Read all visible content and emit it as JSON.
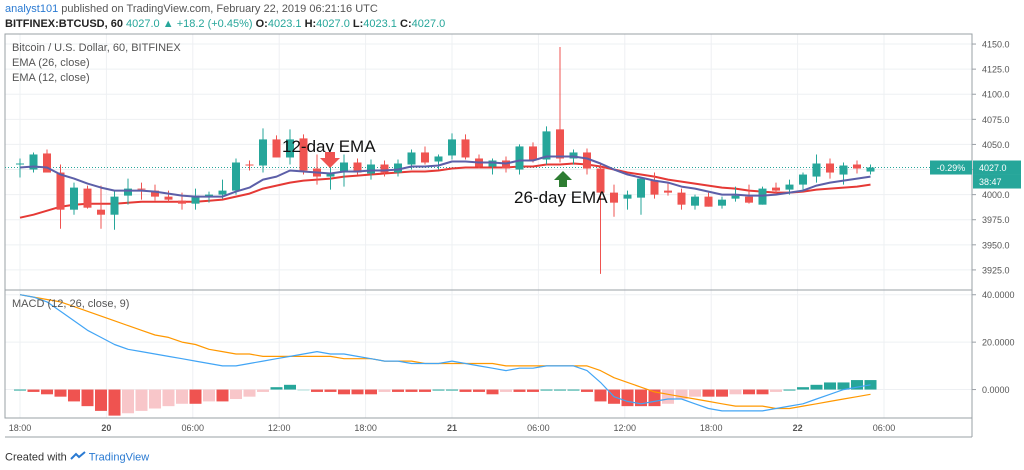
{
  "header": {
    "author": "analyst101",
    "published": "published on TradingView.com, February 22, 2019 06:21:16 UTC",
    "symbol": "BITFINEX:BTCUSD, 60",
    "change_arrow": "▲",
    "change": "+18.2 (+0.45%)",
    "o_label": "O:",
    "o_value": "4023.1",
    "h_label": "H:",
    "h_value": "4027.0",
    "l_label": "L:",
    "l_value": "4023.1",
    "c_label": "C:",
    "c_value": "4027.0"
  },
  "legend": {
    "title": "Bitcoin / U.S. Dollar, 60, BITFINEX",
    "ema26": "EMA (26, close)",
    "ema12": "EMA (12, close)",
    "macd": "MACD (12, 26, close, 9)"
  },
  "annotations": {
    "ema12_label": "12-day EMA",
    "ema26_label": "26-day EMA"
  },
  "price_tags": {
    "change_pct": "-0.29%",
    "last_price": "4027.0",
    "countdown": "38:47"
  },
  "footer": {
    "created_with": "Created with",
    "brand": "TradingView"
  },
  "colors": {
    "up": "#26a69a",
    "down": "#ef5350",
    "ema26": "#e53935",
    "ema12": "#5c5fa8",
    "macd_line": "#42a5f5",
    "signal_line": "#ff9800",
    "hist_down_strong": "#ef5350",
    "hist_down_weak": "#f8c6c9",
    "hist_up_strong": "#26a69a",
    "hist_up_weak": "#b2dfdb"
  },
  "chart_data": [
    {
      "type": "candlestick",
      "title": "Bitcoin / U.S. Dollar, 60, BITFINEX",
      "x_tick_labels": [
        "18:00",
        "20",
        "06:00",
        "12:00",
        "18:00",
        "21",
        "06:00",
        "12:00",
        "18:00",
        "22",
        "06:00"
      ],
      "y_tick_labels": [
        "3925.0",
        "3950.0",
        "3975.0",
        "4000.0",
        "4025.0",
        "4050.0",
        "4075.0",
        "4100.0",
        "4125.0",
        "4150.0"
      ],
      "ylim": [
        3905,
        4160
      ],
      "grid": true,
      "last_price": 4027.0,
      "candles": [
        {
          "o": 4030,
          "h": 4036,
          "l": 4017,
          "c": 4031
        },
        {
          "o": 4025,
          "h": 4042,
          "l": 4022,
          "c": 4040
        },
        {
          "o": 4041,
          "h": 4045,
          "l": 4022,
          "c": 4022
        },
        {
          "o": 4022,
          "h": 4030,
          "l": 3966,
          "c": 3985
        },
        {
          "o": 3985,
          "h": 4012,
          "l": 3980,
          "c": 4007
        },
        {
          "o": 4006,
          "h": 4009,
          "l": 3986,
          "c": 3987
        },
        {
          "o": 3985,
          "h": 4009,
          "l": 3966,
          "c": 3980
        },
        {
          "o": 3980,
          "h": 4004,
          "l": 3965,
          "c": 3998
        },
        {
          "o": 3999,
          "h": 4016,
          "l": 3990,
          "c": 4006
        },
        {
          "o": 4006,
          "h": 4012,
          "l": 3995,
          "c": 4005
        },
        {
          "o": 4004,
          "h": 4010,
          "l": 3994,
          "c": 3998
        },
        {
          "o": 3998,
          "h": 4004,
          "l": 3993,
          "c": 3995
        },
        {
          "o": 3994,
          "h": 4002,
          "l": 3985,
          "c": 3991
        },
        {
          "o": 3991,
          "h": 4006,
          "l": 3985,
          "c": 3999
        },
        {
          "o": 3998,
          "h": 4003,
          "l": 3992,
          "c": 4000
        },
        {
          "o": 4000,
          "h": 4015,
          "l": 3996,
          "c": 4004
        },
        {
          "o": 4004,
          "h": 4036,
          "l": 4000,
          "c": 4032
        },
        {
          "o": 4030,
          "h": 4034,
          "l": 4024,
          "c": 4029
        },
        {
          "o": 4029,
          "h": 4066,
          "l": 4022,
          "c": 4055
        },
        {
          "o": 4055,
          "h": 4059,
          "l": 4037,
          "c": 4037
        },
        {
          "o": 4037,
          "h": 4065,
          "l": 4030,
          "c": 4055
        },
        {
          "o": 4056,
          "h": 4060,
          "l": 4020,
          "c": 4024
        },
        {
          "o": 4026,
          "h": 4040,
          "l": 4010,
          "c": 4018
        },
        {
          "o": 4018,
          "h": 4032,
          "l": 4005,
          "c": 4022
        },
        {
          "o": 4023,
          "h": 4040,
          "l": 4008,
          "c": 4032
        },
        {
          "o": 4032,
          "h": 4036,
          "l": 4020,
          "c": 4022
        },
        {
          "o": 4021,
          "h": 4035,
          "l": 4015,
          "c": 4030
        },
        {
          "o": 4030,
          "h": 4034,
          "l": 4018,
          "c": 4022
        },
        {
          "o": 4022,
          "h": 4035,
          "l": 4018,
          "c": 4031
        },
        {
          "o": 4030,
          "h": 4045,
          "l": 4025,
          "c": 4042
        },
        {
          "o": 4042,
          "h": 4048,
          "l": 4030,
          "c": 4032
        },
        {
          "o": 4033,
          "h": 4040,
          "l": 4025,
          "c": 4038
        },
        {
          "o": 4039,
          "h": 4061,
          "l": 4035,
          "c": 4055
        },
        {
          "o": 4055,
          "h": 4060,
          "l": 4035,
          "c": 4037
        },
        {
          "o": 4036,
          "h": 4040,
          "l": 4026,
          "c": 4028
        },
        {
          "o": 4028,
          "h": 4036,
          "l": 4020,
          "c": 4034
        },
        {
          "o": 4034,
          "h": 4038,
          "l": 4022,
          "c": 4026
        },
        {
          "o": 4025,
          "h": 4050,
          "l": 4020,
          "c": 4048
        },
        {
          "o": 4048,
          "h": 4052,
          "l": 4032,
          "c": 4034
        },
        {
          "o": 4035,
          "h": 4068,
          "l": 4030,
          "c": 4063
        },
        {
          "o": 4065,
          "h": 4147,
          "l": 4032,
          "c": 4036
        },
        {
          "o": 4036,
          "h": 4045,
          "l": 4030,
          "c": 4042
        },
        {
          "o": 4042,
          "h": 4046,
          "l": 4020,
          "c": 4026
        },
        {
          "o": 4026,
          "h": 4030,
          "l": 3921,
          "c": 4002
        },
        {
          "o": 4002,
          "h": 4010,
          "l": 3978,
          "c": 3992
        },
        {
          "o": 3996,
          "h": 4004,
          "l": 3985,
          "c": 4000
        },
        {
          "o": 3997,
          "h": 4016,
          "l": 3980,
          "c": 4016
        },
        {
          "o": 4014,
          "h": 4022,
          "l": 3996,
          "c": 4000
        },
        {
          "o": 4004,
          "h": 4012,
          "l": 3999,
          "c": 4002
        },
        {
          "o": 4002,
          "h": 4006,
          "l": 3985,
          "c": 3990
        },
        {
          "o": 3989,
          "h": 4000,
          "l": 3985,
          "c": 3998
        },
        {
          "o": 3998,
          "h": 4002,
          "l": 3988,
          "c": 3988
        },
        {
          "o": 3989,
          "h": 3998,
          "l": 3986,
          "c": 3995
        },
        {
          "o": 3996,
          "h": 4008,
          "l": 3993,
          "c": 3999
        },
        {
          "o": 3998,
          "h": 4010,
          "l": 3991,
          "c": 3992
        },
        {
          "o": 3990,
          "h": 4008,
          "l": 3990,
          "c": 4006
        },
        {
          "o": 4007,
          "h": 4012,
          "l": 4000,
          "c": 4004
        },
        {
          "o": 4005,
          "h": 4015,
          "l": 4000,
          "c": 4010
        },
        {
          "o": 4010,
          "h": 4022,
          "l": 4005,
          "c": 4020
        },
        {
          "o": 4018,
          "h": 4040,
          "l": 4012,
          "c": 4031
        },
        {
          "o": 4031,
          "h": 4036,
          "l": 4016,
          "c": 4022
        },
        {
          "o": 4020,
          "h": 4032,
          "l": 4010,
          "c": 4029
        },
        {
          "o": 4030,
          "h": 4034,
          "l": 4021,
          "c": 4026
        },
        {
          "o": 4023,
          "h": 4030,
          "l": 4020,
          "c": 4027
        }
      ],
      "series": [
        {
          "name": "EMA (26, close)",
          "values": [
            3977,
            3980,
            3984,
            3988,
            3990,
            3991,
            3991,
            3991,
            3992,
            3993,
            3993,
            3993,
            3993,
            3993,
            3994,
            3995,
            3998,
            4001,
            4006,
            4009,
            4012,
            4014,
            4015,
            4016,
            4018,
            4019,
            4020,
            4021,
            4022,
            4023,
            4023,
            4024,
            4026,
            4027,
            4027,
            4027,
            4027,
            4028,
            4028,
            4030,
            4030,
            4031,
            4030,
            4028,
            4025,
            4022,
            4020,
            4018,
            4015,
            4013,
            4011,
            4009,
            4007,
            4006,
            4004,
            4003,
            4002,
            4002,
            4003,
            4005,
            4006,
            4007,
            4008,
            4010
          ]
        },
        {
          "name": "EMA (12, close)",
          "values": [
            4027,
            4028,
            4027,
            4020,
            4016,
            4011,
            4007,
            4004,
            4004,
            4004,
            4003,
            4001,
            3999,
            3998,
            3998,
            3998,
            4003,
            4007,
            4015,
            4018,
            4024,
            4023,
            4022,
            4021,
            4023,
            4023,
            4024,
            4024,
            4025,
            4028,
            4028,
            4029,
            4033,
            4033,
            4032,
            4032,
            4031,
            4034,
            4034,
            4038,
            4038,
            4038,
            4036,
            4031,
            4025,
            4020,
            4017,
            4014,
            4012,
            4008,
            4006,
            4003,
            4000,
            4000,
            3999,
            3999,
            4000,
            4002,
            4004,
            4009,
            4012,
            4014,
            4016,
            4018
          ]
        }
      ]
    },
    {
      "type": "line",
      "title": "MACD (12, 26, close, 9)",
      "y_tick_labels": [
        "0.0000",
        "20.0000",
        "40.0000"
      ],
      "ylim": [
        -12,
        42
      ],
      "grid": true,
      "series": [
        {
          "name": "MACD",
          "values": [
            40,
            39,
            37,
            33,
            29,
            25,
            22,
            19,
            17,
            16,
            15,
            14,
            13,
            12,
            11,
            10,
            10,
            11,
            12,
            13,
            14,
            15,
            16,
            15,
            15,
            14,
            13,
            12,
            12,
            11,
            11,
            11,
            12,
            11,
            10,
            9,
            8,
            9,
            9,
            10,
            10,
            10,
            8,
            3,
            -3,
            -5,
            -6,
            -5,
            -4,
            -4,
            -6,
            -8,
            -9,
            -9,
            -9,
            -9,
            -8,
            -7,
            -6,
            -4,
            -2,
            0,
            1,
            2
          ]
        },
        {
          "name": "Signal",
          "values": [
            40,
            39,
            38,
            37,
            35,
            33,
            31,
            29,
            27,
            25,
            23,
            22,
            20,
            19,
            17,
            16,
            15,
            15,
            14,
            14,
            14,
            14,
            14,
            14,
            13,
            13,
            13,
            12,
            12,
            12,
            11,
            11,
            11,
            11,
            11,
            11,
            10,
            10,
            10,
            10,
            10,
            10,
            10,
            8,
            5,
            3,
            1,
            -1,
            -2,
            -3,
            -4,
            -5,
            -6,
            -7,
            -7,
            -7,
            -8,
            -8,
            -7,
            -6,
            -5,
            -4,
            -3,
            -2
          ]
        },
        {
          "name": "Histogram",
          "values": [
            0,
            -1,
            -2,
            -3,
            -5,
            -7,
            -9,
            -11,
            -10,
            -9,
            -8,
            -7,
            -6,
            -6,
            -5,
            -5,
            -4,
            -3,
            -1,
            1,
            2,
            0,
            -1,
            -1,
            -2,
            -2,
            -2,
            -1,
            -1,
            -1,
            -1,
            0,
            0,
            -1,
            -1,
            -2,
            -1,
            -1,
            -1,
            0,
            0,
            0,
            -1,
            -5,
            -6,
            -7,
            -7,
            -7,
            -6,
            -4,
            -3,
            -3,
            -3,
            -2,
            -2,
            -2,
            -1,
            0,
            1,
            2,
            3,
            3,
            4,
            4
          ]
        }
      ]
    }
  ]
}
